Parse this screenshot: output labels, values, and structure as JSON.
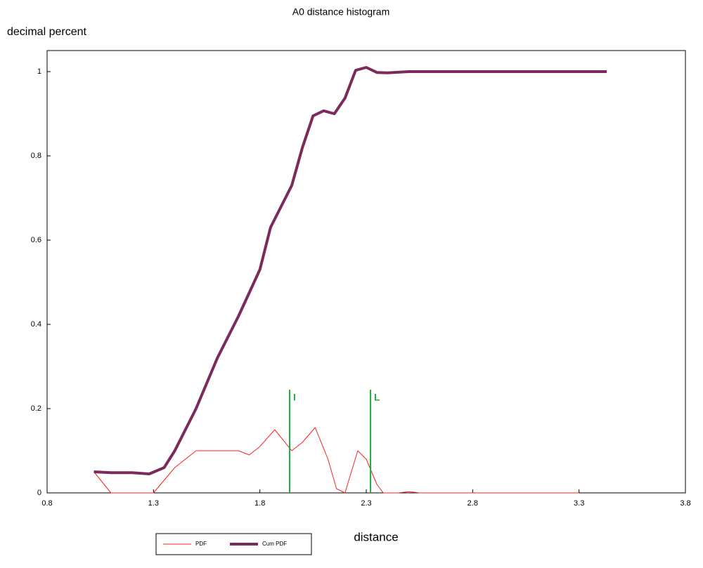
{
  "chart_data": {
    "type": "line",
    "title": "A0 distance histogram",
    "ylabel": "decimal percent",
    "xlabel": "distance",
    "xlim": [
      0.8,
      3.8
    ],
    "xticks": [
      0.8,
      1.3,
      1.8,
      2.3,
      2.8,
      3.3,
      3.8
    ],
    "ylim": [
      0,
      1
    ],
    "yticks": [
      0,
      0.2,
      0.4,
      0.6,
      0.8,
      1
    ],
    "grid": false,
    "legend": "bottom-left",
    "series": [
      {
        "name": "PDF",
        "color": "#ff2020",
        "width": 1,
        "x": [
          1.02,
          1.1,
          1.3,
          1.4,
          1.5,
          1.6,
          1.7,
          1.75,
          1.8,
          1.87,
          1.95,
          2.0,
          2.06,
          2.12,
          2.16,
          2.2,
          2.26,
          2.3,
          2.35,
          2.38,
          2.45,
          2.5,
          2.55,
          3.3
        ],
        "values": [
          0.05,
          0,
          0,
          0.06,
          0.1,
          0.1,
          0.1,
          0.09,
          0.11,
          0.15,
          0.1,
          0.12,
          0.155,
          0.08,
          0.01,
          0,
          0.1,
          0.08,
          0.02,
          0,
          0,
          0.003,
          0,
          0
        ]
      },
      {
        "name": "Cum PDF",
        "color": "#7b2a5c",
        "width": 4,
        "x": [
          1.02,
          1.1,
          1.2,
          1.28,
          1.35,
          1.4,
          1.5,
          1.6,
          1.7,
          1.8,
          1.85,
          1.9,
          1.95,
          2.0,
          2.05,
          2.1,
          2.15,
          2.2,
          2.25,
          2.3,
          2.35,
          2.4,
          2.5,
          3.43
        ],
        "values": [
          0.05,
          0.048,
          0.048,
          0.045,
          0.06,
          0.1,
          0.2,
          0.32,
          0.42,
          0.53,
          0.63,
          0.68,
          0.73,
          0.82,
          0.895,
          0.907,
          0.9,
          0.937,
          1.003,
          1.01,
          0.998,
          0.997,
          1.0,
          1.0
        ]
      }
    ],
    "markers": {
      "color": "#22aa44",
      "items": [
        {
          "x": 1.94,
          "y": [
            0,
            0.245
          ],
          "label": "I"
        },
        {
          "x": 2.32,
          "y": [
            0,
            0.245
          ],
          "label": "L"
        }
      ]
    }
  }
}
